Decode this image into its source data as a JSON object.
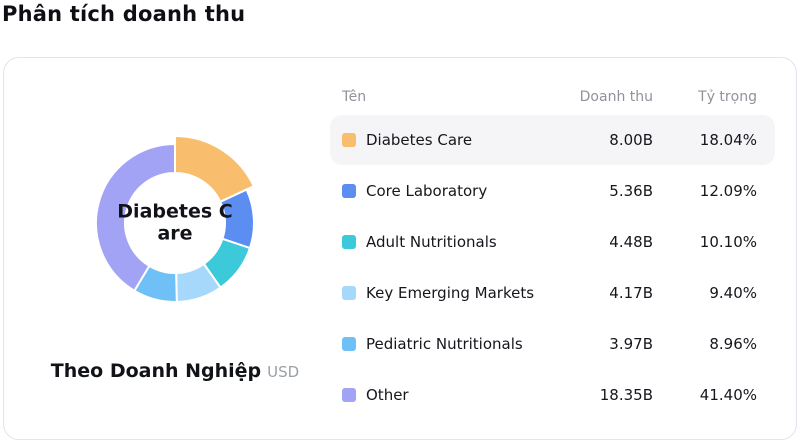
{
  "page": {
    "title": "Phân tích doanh thu"
  },
  "table": {
    "columns": {
      "name": "Tên",
      "revenue": "Doanh thu",
      "share": "Tỷ trọng"
    }
  },
  "chart_data": {
    "type": "pie",
    "title": "Theo Doanh Nghiệp",
    "unit": "USD",
    "center_label_line1": "Diabetes C",
    "center_label_line2": "are",
    "legend_position": "right-table",
    "inner_radius_px": 50,
    "outer_radius_px": 79,
    "selected_outer_radius_px": 87,
    "series": [
      {
        "name": "Diabetes Care",
        "value": "8.00B",
        "pct": 18.04,
        "pct_label": "18.04%",
        "color": "#F9BE6D",
        "selected": true
      },
      {
        "name": "Core Laboratory",
        "value": "5.36B",
        "pct": 12.09,
        "pct_label": "12.09%",
        "color": "#5C8EF2",
        "selected": false
      },
      {
        "name": "Adult Nutritionals",
        "value": "4.48B",
        "pct": 10.1,
        "pct_label": "10.10%",
        "color": "#3CC9DA",
        "selected": false
      },
      {
        "name": "Key Emerging Markets",
        "value": "4.17B",
        "pct": 9.4,
        "pct_label": "9.40%",
        "color": "#A5D8FA",
        "selected": false
      },
      {
        "name": "Pediatric Nutritionals",
        "value": "3.97B",
        "pct": 8.96,
        "pct_label": "8.96%",
        "color": "#6FC0F7",
        "selected": false
      },
      {
        "name": "Other",
        "value": "18.35B",
        "pct": 41.4,
        "pct_label": "41.40%",
        "color": "#A2A3F5",
        "selected": false
      }
    ]
  }
}
